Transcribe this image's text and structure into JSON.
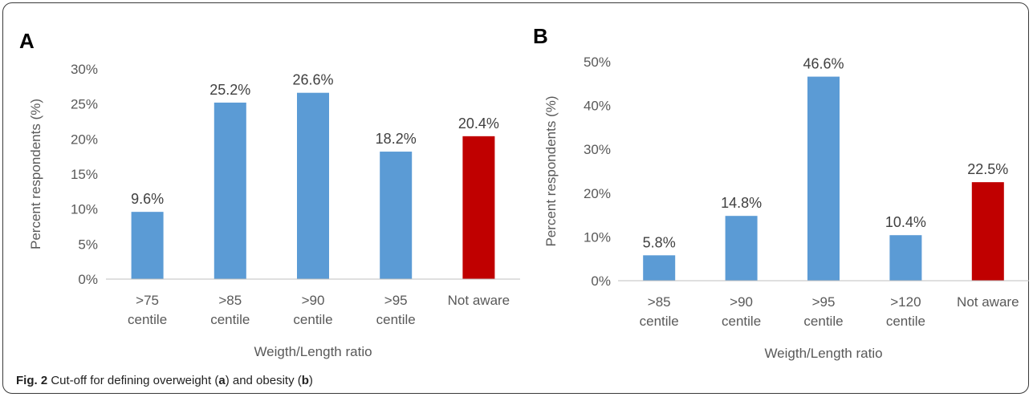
{
  "caption": {
    "label": "Fig. 2",
    "text_1": " Cut-off for defining overweight (",
    "a": "a",
    "text_2": ") and obesity (",
    "b": "b",
    "text_3": ")"
  },
  "chart_data": [
    {
      "panel_label": "A",
      "type": "bar",
      "categories": [
        [
          ">75",
          "centile"
        ],
        [
          ">85",
          "centile"
        ],
        [
          ">90",
          "centile"
        ],
        [
          ">95",
          "centile"
        ],
        [
          "Not aware"
        ]
      ],
      "values": [
        9.6,
        25.2,
        26.6,
        18.2,
        20.4
      ],
      "data_labels": [
        "9.6%",
        "25.2%",
        "26.6%",
        "18.2%",
        "20.4%"
      ],
      "bar_colors": [
        "#5b9bd5",
        "#5b9bd5",
        "#5b9bd5",
        "#5b9bd5",
        "#c00000"
      ],
      "ylabel": "Percent respondents (%)",
      "xlabel": "Weigth/Length ratio",
      "ylim": [
        0,
        30
      ],
      "yticks": [
        0,
        5,
        10,
        15,
        20,
        25,
        30
      ],
      "ytick_labels": [
        "0%",
        "5%",
        "10%",
        "15%",
        "20%",
        "25%",
        "30%"
      ],
      "grid": false
    },
    {
      "panel_label": "B",
      "type": "bar",
      "categories": [
        [
          ">85",
          "centile"
        ],
        [
          ">90",
          "centile"
        ],
        [
          ">95",
          "centile"
        ],
        [
          ">120",
          "centile"
        ],
        [
          "Not aware"
        ]
      ],
      "values": [
        5.8,
        14.8,
        46.6,
        10.4,
        22.5
      ],
      "data_labels": [
        "5.8%",
        "14.8%",
        "46.6%",
        "10.4%",
        "22.5%"
      ],
      "bar_colors": [
        "#5b9bd5",
        "#5b9bd5",
        "#5b9bd5",
        "#5b9bd5",
        "#c00000"
      ],
      "ylabel": "Percent respondents (%)",
      "xlabel": "Weigth/Length ratio",
      "ylim": [
        0,
        50
      ],
      "yticks": [
        0,
        10,
        20,
        30,
        40,
        50
      ],
      "ytick_labels": [
        "0%",
        "10%",
        "20%",
        "30%",
        "40%",
        "50%"
      ],
      "grid": false
    }
  ]
}
